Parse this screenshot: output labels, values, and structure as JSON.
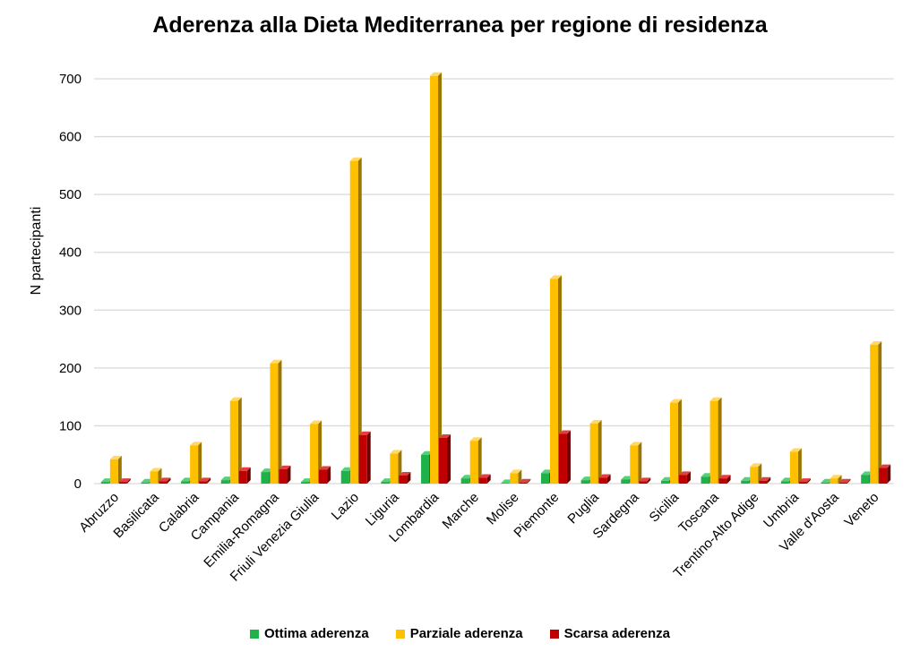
{
  "chart_data": {
    "type": "bar",
    "title": "Aderenza alla Dieta Mediterranea per regione di residenza",
    "ylabel": "N partecipanti",
    "xlabel": "",
    "ylim": [
      0,
      700
    ],
    "yticks": [
      0,
      100,
      200,
      300,
      400,
      500,
      600,
      700
    ],
    "grid": true,
    "legend": "bottom",
    "categories": [
      "Abruzzo",
      "Basilicata",
      "Calabria",
      "Campania",
      "Emilia-Romagna",
      "Friuli Venezia Giulia",
      "Lazio",
      "Liguria",
      "Lombardia",
      "Marche",
      "Molise",
      "Piemonte",
      "Puglia",
      "Sardegna",
      "Sicilia",
      "Toscana",
      "Trentino-Alto Adige",
      "Umbria",
      "Valle d'Aosta",
      "Veneto"
    ],
    "series": [
      {
        "name": "Ottima aderenza",
        "color": "#1fb24a",
        "values": [
          3,
          2,
          4,
          6,
          20,
          3,
          22,
          3,
          50,
          9,
          1,
          18,
          6,
          7,
          5,
          12,
          5,
          4,
          2,
          15
        ]
      },
      {
        "name": "Parziale aderenza",
        "color": "#ffc000",
        "values": [
          42,
          21,
          66,
          143,
          208,
          103,
          558,
          52,
          705,
          74,
          18,
          354,
          104,
          66,
          140,
          143,
          29,
          55,
          9,
          240
        ]
      },
      {
        "name": "Scarsa aderenza",
        "color": "#c00000",
        "values": [
          3,
          4,
          4,
          22,
          25,
          24,
          84,
          14,
          79,
          10,
          2,
          86,
          10,
          4,
          15,
          9,
          5,
          3,
          2,
          27
        ]
      }
    ]
  }
}
